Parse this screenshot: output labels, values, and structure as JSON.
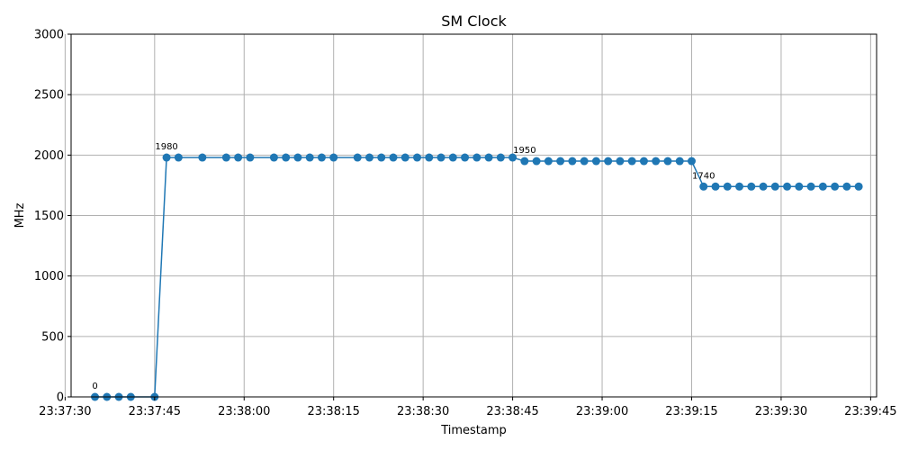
{
  "chart_data": {
    "type": "line",
    "title": "SM Clock",
    "xlabel": "Timestamp",
    "ylabel": "MHz",
    "ylim": [
      0,
      3000
    ],
    "xlim": [
      "23:37:31",
      "23:39:46"
    ],
    "grid": true,
    "marker": "circle",
    "color": "#1f77b4",
    "x_ticks": [
      "23:37:30",
      "23:37:45",
      "23:38:00",
      "23:38:15",
      "23:38:30",
      "23:38:45",
      "23:39:00",
      "23:39:15",
      "23:39:30",
      "23:39:45"
    ],
    "y_ticks": [
      "0",
      "500",
      "1000",
      "1500",
      "2000",
      "2500",
      "3000"
    ],
    "series": [
      {
        "x": [
          "23:37:35",
          "23:37:37",
          "23:37:39",
          "23:37:41",
          "23:37:45",
          "23:37:47",
          "23:37:49",
          "23:37:53",
          "23:37:57",
          "23:37:59",
          "23:38:01",
          "23:38:05",
          "23:38:07",
          "23:38:09",
          "23:38:11",
          "23:38:13",
          "23:38:15",
          "23:38:19",
          "23:38:21",
          "23:38:23",
          "23:38:25",
          "23:38:27",
          "23:38:29",
          "23:38:31",
          "23:38:33",
          "23:38:35",
          "23:38:37",
          "23:38:39",
          "23:38:41",
          "23:38:43",
          "23:38:45",
          "23:38:47",
          "23:38:49",
          "23:38:51",
          "23:38:53",
          "23:38:55",
          "23:38:57",
          "23:38:59",
          "23:39:01",
          "23:39:03",
          "23:39:05",
          "23:39:07",
          "23:39:09",
          "23:39:11",
          "23:39:13",
          "23:39:15",
          "23:39:17",
          "23:39:19",
          "23:39:21",
          "23:39:23",
          "23:39:25",
          "23:39:27",
          "23:39:29",
          "23:39:31",
          "23:39:33",
          "23:39:35",
          "23:39:37",
          "23:39:39",
          "23:39:41",
          "23:39:43"
        ],
        "values": [
          0,
          0,
          0,
          0,
          0,
          1980,
          1980,
          1980,
          1980,
          1980,
          1980,
          1980,
          1980,
          1980,
          1980,
          1980,
          1980,
          1980,
          1980,
          1980,
          1980,
          1980,
          1980,
          1980,
          1980,
          1980,
          1980,
          1980,
          1980,
          1980,
          1980,
          1950,
          1950,
          1950,
          1950,
          1950,
          1950,
          1950,
          1950,
          1950,
          1950,
          1950,
          1950,
          1950,
          1950,
          1950,
          1740,
          1740,
          1740,
          1740,
          1740,
          1740,
          1740,
          1740,
          1740,
          1740,
          1740,
          1740,
          1740,
          1740
        ]
      }
    ],
    "annotations": [
      {
        "x": "23:37:35",
        "y": 0,
        "text": "0"
      },
      {
        "x": "23:37:47",
        "y": 1980,
        "text": "1980"
      },
      {
        "x": "23:38:47",
        "y": 1950,
        "text": "1950"
      },
      {
        "x": "23:39:17",
        "y": 1740,
        "text": "1740"
      }
    ]
  }
}
